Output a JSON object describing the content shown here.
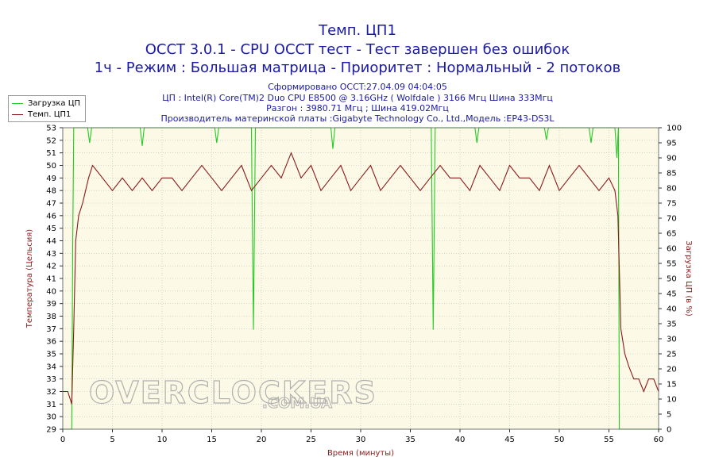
{
  "header": {
    "title_line1": "Темп. ЦП1",
    "title_line2": "OCCT 3.0.1 - CPU OCCT тест - Тест завершен без ошибок",
    "title_line3": "1ч - Режим : Большая матрица - Приоритет : Нормальный - 2 потоков",
    "info_line1": "Сформировано OCCT:27.04.09 04:04:05",
    "info_line2": "ЦП : Intel(R) Core(TM)2 Duo CPU E8500 @ 3.16GHz ( Wolfdale ) 3166 Мгц Шина 333Мгц",
    "info_line3": "Разгон : 3980.71 Мгц ; Шина 419.02Мгц",
    "info_line4": "Производитель материнской платы :Gigabyte Technology Co., Ltd.,Модель :EP43-DS3L"
  },
  "legend": {
    "items": [
      {
        "label": "Загрузка ЦП",
        "color": "#22cc22"
      },
      {
        "label": "Темп. ЦП1",
        "color": "#8b1a1a"
      }
    ]
  },
  "watermark": {
    "line1": "OVERCLOCKERS",
    "line2": ".COM.UA"
  },
  "chart_data": {
    "type": "line",
    "xlabel": "Время (минуты)",
    "ylabel_left": "Температура (Цельсия)",
    "ylabel_right": "Загрузка ЦП (в %)",
    "xlim": [
      0,
      60
    ],
    "ylim_left": [
      29,
      53
    ],
    "ylim_right": [
      0,
      100
    ],
    "x_ticks": [
      0,
      5,
      10,
      15,
      20,
      25,
      30,
      35,
      40,
      45,
      50,
      55,
      60
    ],
    "y_left_ticks": [
      29,
      30,
      31,
      32,
      33,
      34,
      35,
      36,
      37,
      38,
      39,
      40,
      41,
      42,
      43,
      44,
      45,
      46,
      47,
      48,
      49,
      50,
      51,
      52,
      53
    ],
    "y_right_ticks": [
      0,
      5,
      10,
      15,
      20,
      25,
      30,
      35,
      40,
      45,
      50,
      55,
      60,
      65,
      70,
      75,
      80,
      85,
      90,
      95,
      100
    ],
    "grid": true,
    "legend_position": "top-left",
    "series": [
      {
        "name": "Загрузка ЦП",
        "axis": "right",
        "color": "#22cc22",
        "x": [
          0,
          0.9,
          1.0,
          1.1,
          1.2,
          2.5,
          2.7,
          2.9,
          5.0,
          7.8,
          8.0,
          8.2,
          12.0,
          15.3,
          15.5,
          15.7,
          17.5,
          19.0,
          19.2,
          19.4,
          21.0,
          27.0,
          27.2,
          27.4,
          30.0,
          37.1,
          37.3,
          37.5,
          40.0,
          41.5,
          41.7,
          41.9,
          45.0,
          48.5,
          48.7,
          48.9,
          51.0,
          53.0,
          53.2,
          53.4,
          55.0,
          55.6,
          55.8,
          55.95,
          56.05,
          60
        ],
        "values": [
          0,
          0,
          60,
          100,
          100,
          100,
          95,
          100,
          100,
          100,
          94,
          100,
          100,
          100,
          95,
          100,
          100,
          100,
          33,
          100,
          100,
          100,
          93,
          100,
          100,
          100,
          33,
          100,
          100,
          100,
          95,
          100,
          100,
          100,
          96,
          100,
          100,
          100,
          95,
          100,
          100,
          100,
          90,
          100,
          0,
          0
        ]
      },
      {
        "name": "Темп. ЦП1",
        "axis": "left",
        "color": "#8b1a1a",
        "x": [
          0,
          0.5,
          0.9,
          1.1,
          1.3,
          1.6,
          2.0,
          2.6,
          3.0,
          4.0,
          5.0,
          6.0,
          7.0,
          8.0,
          9.0,
          10.0,
          11.0,
          12.0,
          13.0,
          14.0,
          15.0,
          16.0,
          17.0,
          18.0,
          19.0,
          20.0,
          21.0,
          22.0,
          23.0,
          24.0,
          25.0,
          26.0,
          27.0,
          28.0,
          29.0,
          30.0,
          31.0,
          32.0,
          33.0,
          34.0,
          35.0,
          36.0,
          37.0,
          38.0,
          39.0,
          40.0,
          41.0,
          42.0,
          43.0,
          44.0,
          45.0,
          46.0,
          47.0,
          48.0,
          49.0,
          50.0,
          51.0,
          52.0,
          53.0,
          54.0,
          55.0,
          55.6,
          55.9,
          56.2,
          56.6,
          57.0,
          57.5,
          58.0,
          58.5,
          59.0,
          59.5,
          60
        ],
        "values": [
          32,
          32,
          31,
          37,
          44,
          46,
          47,
          49,
          50,
          49,
          48,
          49,
          48,
          49,
          48,
          49,
          49,
          48,
          49,
          50,
          49,
          48,
          49,
          50,
          48,
          49,
          50,
          49,
          51,
          49,
          50,
          48,
          49,
          50,
          48,
          49,
          50,
          48,
          49,
          50,
          49,
          48,
          49,
          50,
          49,
          49,
          48,
          50,
          49,
          48,
          50,
          49,
          49,
          48,
          50,
          48,
          49,
          50,
          49,
          48,
          49,
          48,
          46,
          37,
          35,
          34,
          33,
          33,
          32,
          33,
          33,
          32
        ]
      }
    ]
  }
}
